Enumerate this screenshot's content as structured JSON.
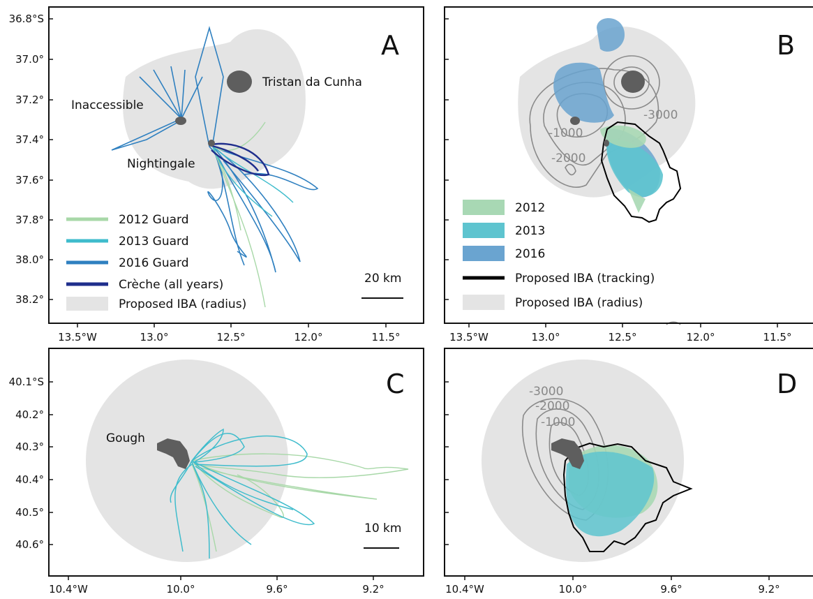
{
  "panels": {
    "A": {
      "letter": "A",
      "islands": {
        "tristan": "Tristan da Cunha",
        "inaccessible": "Inaccessible",
        "nightingale": "Nightingale"
      },
      "y_ticks": [
        "36.8°S",
        "37.0°",
        "37.2°",
        "37.4°",
        "37.6°",
        "37.8°",
        "38.0°",
        "38.2°"
      ],
      "x_ticks": [
        "13.5°W",
        "13.0°",
        "12.5°",
        "12.0°",
        "11.5°"
      ],
      "scale_bar": "20 km",
      "legend": [
        {
          "label": "2012 Guard",
          "color": "#a8d8a8"
        },
        {
          "label": "2013 Guard",
          "color": "#3fbccc"
        },
        {
          "label": "2016 Guard",
          "color": "#2f80c0"
        },
        {
          "label": "Crèche (all years)",
          "color": "#1f2e8c"
        },
        {
          "label": "Proposed IBA (radius)",
          "color": "#e4e4e4"
        }
      ]
    },
    "B": {
      "letter": "B",
      "x_ticks": [
        "13.5°W",
        "13.0°",
        "12.5°",
        "12.0°",
        "11.5°"
      ],
      "contours": [
        "-1000",
        "-2000",
        "-3000"
      ],
      "legend": [
        {
          "label": "2012",
          "color": "#a8d8b4"
        },
        {
          "label": "2013",
          "color": "#5ec4cf"
        },
        {
          "label": "2016",
          "color": "#6aa4d0"
        },
        {
          "label": "Proposed IBA (tracking)",
          "color": "#000000"
        },
        {
          "label": "Proposed IBA (radius)",
          "color": "#e4e4e4"
        }
      ]
    },
    "C": {
      "letter": "C",
      "islands": {
        "gough": "Gough"
      },
      "y_ticks": [
        "40.1°S",
        "40.2°",
        "40.3°",
        "40.4°",
        "40.5°",
        "40.6°"
      ],
      "x_ticks": [
        "10.4°W",
        "10.0°",
        "9.6°",
        "9.2°"
      ],
      "scale_bar": "10 km"
    },
    "D": {
      "letter": "D",
      "x_ticks": [
        "10.4°W",
        "10.0°",
        "9.6°",
        "9.2°"
      ],
      "contours": [
        "-3000",
        "-2000",
        "-1000"
      ]
    }
  },
  "colors": {
    "island": "#5e5e5e",
    "radius": "#e4e4e4",
    "contour": "#8a8a8a",
    "guard_2012": "#a8d8a8",
    "guard_2013": "#3fbccc",
    "guard_2016": "#2f80c0",
    "creche": "#1f2e8c"
  }
}
